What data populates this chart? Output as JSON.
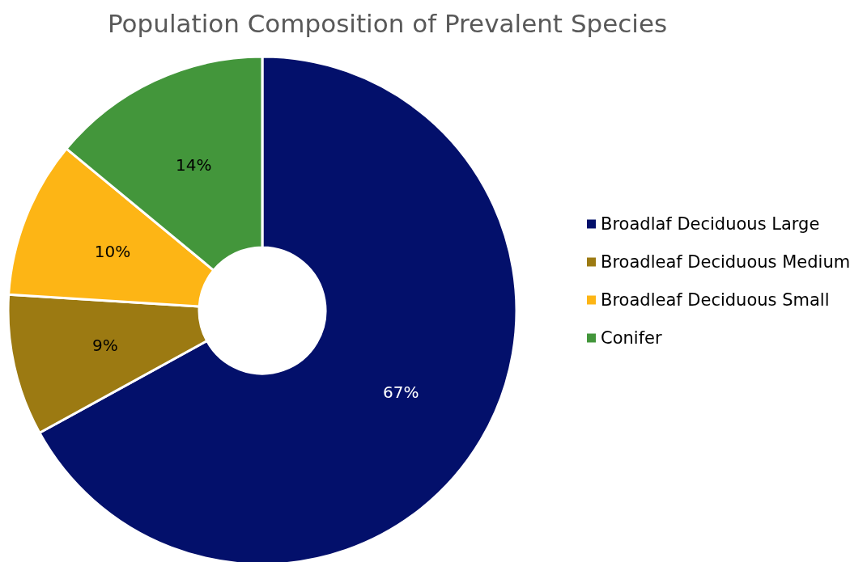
{
  "chart_data": {
    "type": "donut",
    "title": "Population Composition of Prevalent Species",
    "categories": [
      "Broadlaf Deciduous Large",
      "Broadleaf Deciduous Medium",
      "Broadleaf Deciduous Small",
      "Conifer"
    ],
    "values": [
      67,
      9,
      10,
      14
    ],
    "colors": [
      "#03106b",
      "#9c7a12",
      "#fdb515",
      "#43963b"
    ],
    "value_labels": [
      "67%",
      "9%",
      "10%",
      "14%"
    ],
    "legend": "right"
  }
}
